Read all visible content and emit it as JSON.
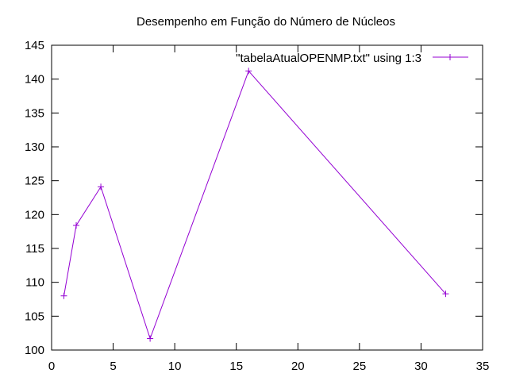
{
  "chart_data": {
    "type": "line",
    "title": "Desempenho em Função do Número de Núcleos",
    "xlabel": "",
    "ylabel": "",
    "xlim": [
      0,
      35
    ],
    "ylim": [
      100,
      145
    ],
    "x_ticks": [
      0,
      5,
      10,
      15,
      20,
      25,
      30,
      35
    ],
    "y_ticks": [
      100,
      105,
      110,
      115,
      120,
      125,
      130,
      135,
      140,
      145
    ],
    "grid": false,
    "legend_position": "top-right",
    "series": [
      {
        "name": "\"tabelaAtualOPENMP.txt\" using 1:3",
        "color": "#9400d3",
        "marker": "plus",
        "x": [
          1,
          2,
          4,
          8,
          16,
          32
        ],
        "y": [
          108.0,
          118.4,
          124.1,
          101.7,
          141.2,
          108.3
        ]
      }
    ]
  }
}
